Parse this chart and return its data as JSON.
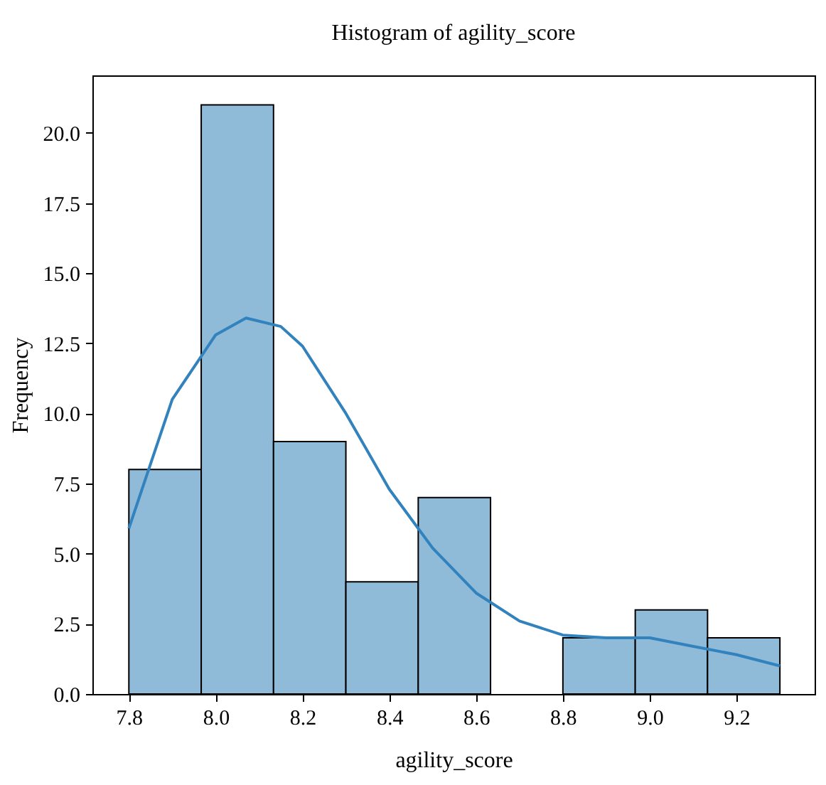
{
  "chart_data": {
    "type": "histogram",
    "title": "Histogram of agility_score",
    "xlabel": "agility_score",
    "ylabel": "Frequency",
    "bins": [
      7.8,
      7.9667,
      8.1333,
      8.3,
      8.4667,
      8.6333,
      8.8,
      8.9667,
      9.1333,
      9.3
    ],
    "values": [
      8,
      21,
      9,
      4,
      7,
      0,
      2,
      3,
      2
    ],
    "color": "#8fbbd9",
    "series": [
      {
        "type": "line",
        "color": "#3182bd",
        "x": [
          7.8,
          7.9,
          8.0,
          8.07,
          8.15,
          8.2,
          8.3,
          8.4,
          8.5,
          8.6,
          8.7,
          8.8,
          8.9,
          9.0,
          9.1,
          9.2,
          9.3
        ],
        "values": [
          5.9,
          10.5,
          12.8,
          13.4,
          13.1,
          12.4,
          10.0,
          7.3,
          5.2,
          3.6,
          2.6,
          2.1,
          2.0,
          2.0,
          1.7,
          1.4,
          1.0
        ]
      }
    ],
    "xlim": [
      7.716,
      9.38
    ],
    "xticks": [
      {
        "value": 7.8,
        "label": "7.8"
      },
      {
        "value": 8.0,
        "label": "8.0"
      },
      {
        "value": 8.2,
        "label": "8.2"
      },
      {
        "value": 8.4,
        "label": "8.4"
      },
      {
        "value": 8.6,
        "label": "8.6"
      },
      {
        "value": 8.8,
        "label": "8.8"
      },
      {
        "value": 9.0,
        "label": "9.0"
      },
      {
        "value": 9.2,
        "label": "9.2"
      }
    ],
    "ylim": [
      0,
      22.05
    ],
    "yticks": [
      {
        "value": 0,
        "label": "0.0"
      },
      {
        "value": 2.5,
        "label": "2.5"
      },
      {
        "value": 5,
        "label": "5.0"
      },
      {
        "value": 7.5,
        "label": "7.5"
      },
      {
        "value": 10,
        "label": "10.0"
      },
      {
        "value": 12.5,
        "label": "12.5"
      },
      {
        "value": 15,
        "label": "15.0"
      },
      {
        "value": 17.5,
        "label": "17.5"
      },
      {
        "value": 20,
        "label": "20.0"
      }
    ],
    "grid": false
  }
}
